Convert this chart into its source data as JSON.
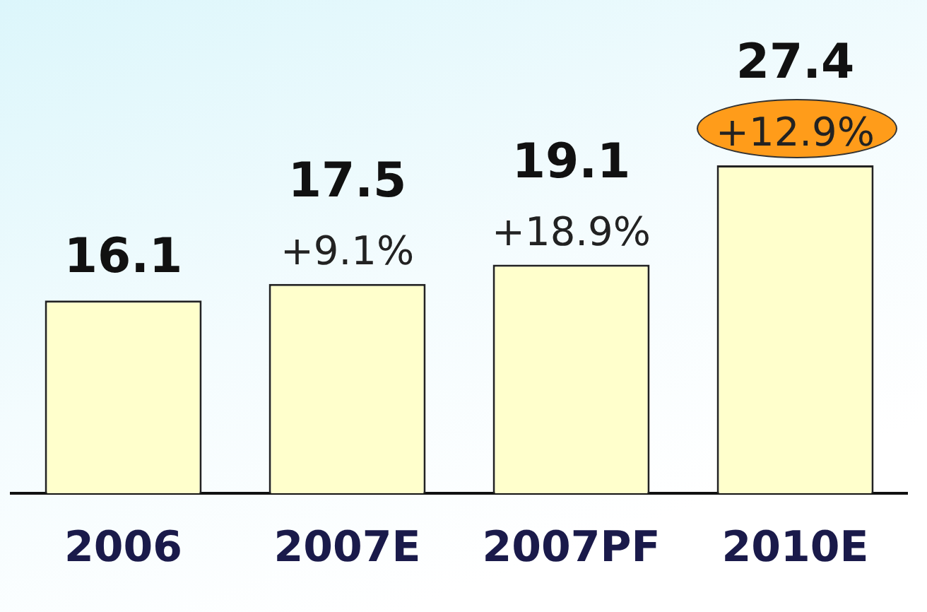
{
  "chart_data": {
    "type": "bar",
    "categories": [
      "2006",
      "2007E",
      "2007PF",
      "2010E"
    ],
    "values": [
      16.1,
      17.5,
      19.1,
      27.4
    ],
    "color": "#ffffcc",
    "data_labels": true,
    "grid": false,
    "legend": false,
    "tick_labels": "x",
    "annotations": [
      {
        "text": "+9.1%",
        "x": "2007E",
        "y": 17.5
      },
      {
        "text": "+18.9%",
        "x": "2007PF",
        "y": 19.1
      },
      {
        "text": "+12.9%",
        "x": "2010E",
        "y": 27.4
      }
    ]
  }
}
